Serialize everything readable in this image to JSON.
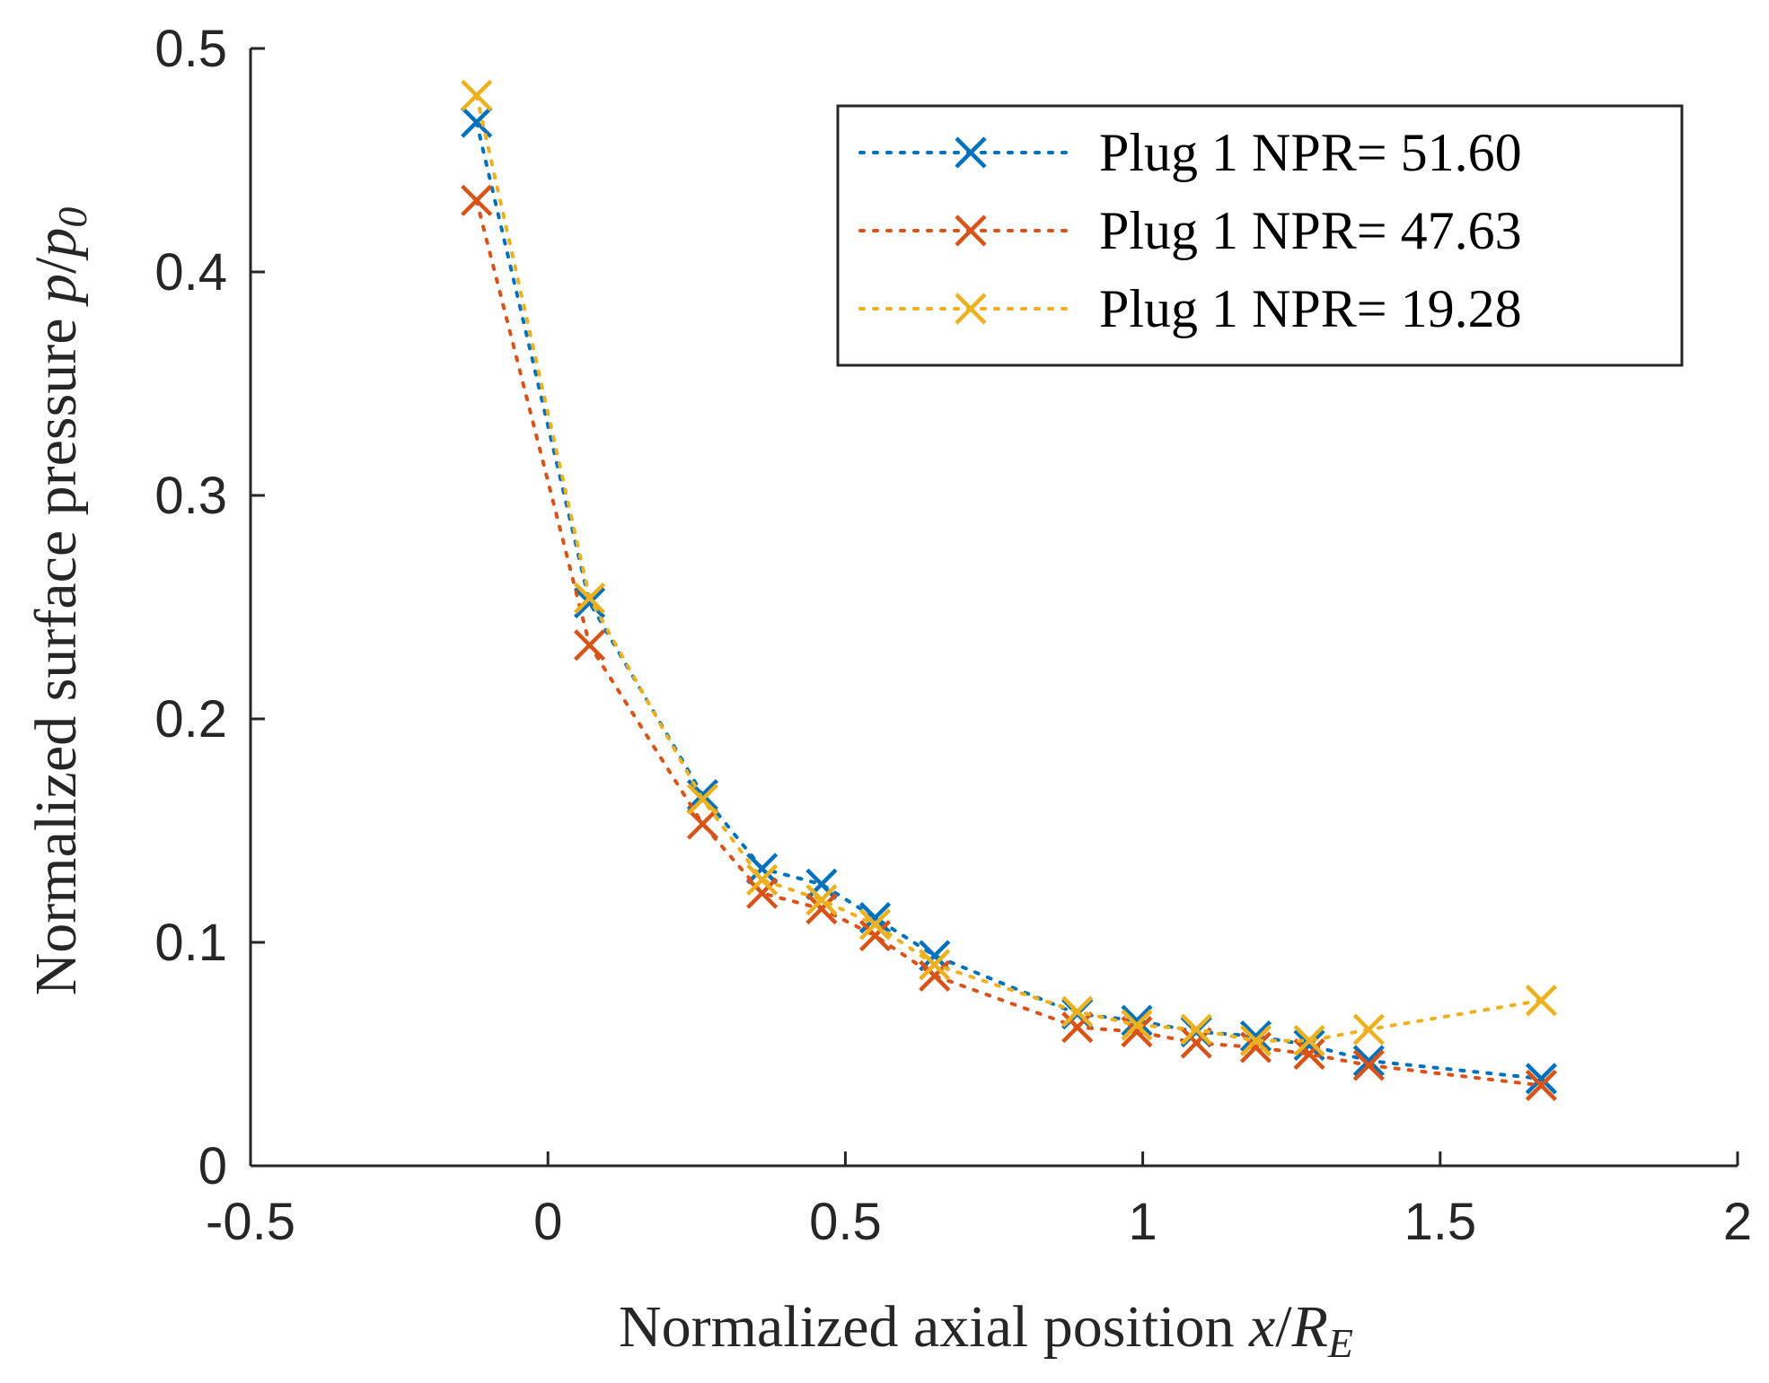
{
  "chart_data": {
    "type": "line",
    "line_style": "dotted",
    "marker": "x",
    "xlim": [
      -0.5,
      2
    ],
    "ylim": [
      0,
      0.5
    ],
    "xticks": [
      "-0.5",
      "0",
      "0.5",
      "1",
      "1.5",
      "2"
    ],
    "yticks": [
      "0",
      "0.1",
      "0.2",
      "0.3",
      "0.4",
      "0.5"
    ],
    "xlabel": {
      "text": "Normalized axial position ",
      "var": "x",
      "slash": "/",
      "var2": "R",
      "sub": "E"
    },
    "ylabel": {
      "text": "Normalized surface pressure ",
      "var": "p",
      "slash": "/",
      "var2": "p",
      "sub": "0"
    },
    "grid": false,
    "legend_position": "top-right",
    "series": [
      {
        "name": "Plug 1 NPR= 51.60",
        "color": "#0072BD",
        "x": [
          -0.12,
          0.07,
          0.26,
          0.36,
          0.46,
          0.55,
          0.65,
          0.89,
          0.99,
          1.09,
          1.19,
          1.28,
          1.38,
          1.67
        ],
        "y": [
          0.467,
          0.252,
          0.166,
          0.133,
          0.126,
          0.111,
          0.094,
          0.068,
          0.065,
          0.06,
          0.058,
          0.054,
          0.047,
          0.039
        ]
      },
      {
        "name": "Plug 1 NPR= 47.63",
        "color": "#D95319",
        "x": [
          -0.12,
          0.07,
          0.26,
          0.36,
          0.46,
          0.55,
          0.65,
          0.89,
          0.99,
          1.09,
          1.19,
          1.28,
          1.38,
          1.67
        ],
        "y": [
          0.432,
          0.233,
          0.153,
          0.122,
          0.115,
          0.103,
          0.085,
          0.062,
          0.06,
          0.055,
          0.053,
          0.05,
          0.045,
          0.036
        ]
      },
      {
        "name": "Plug 1 NPR= 19.28",
        "color": "#EDB120",
        "x": [
          -0.12,
          0.07,
          0.26,
          0.36,
          0.46,
          0.55,
          0.65,
          0.89,
          0.99,
          1.09,
          1.19,
          1.28,
          1.38,
          1.67
        ],
        "y": [
          0.479,
          0.254,
          0.164,
          0.128,
          0.119,
          0.108,
          0.09,
          0.069,
          0.063,
          0.061,
          0.056,
          0.056,
          0.061,
          0.074
        ]
      }
    ]
  }
}
